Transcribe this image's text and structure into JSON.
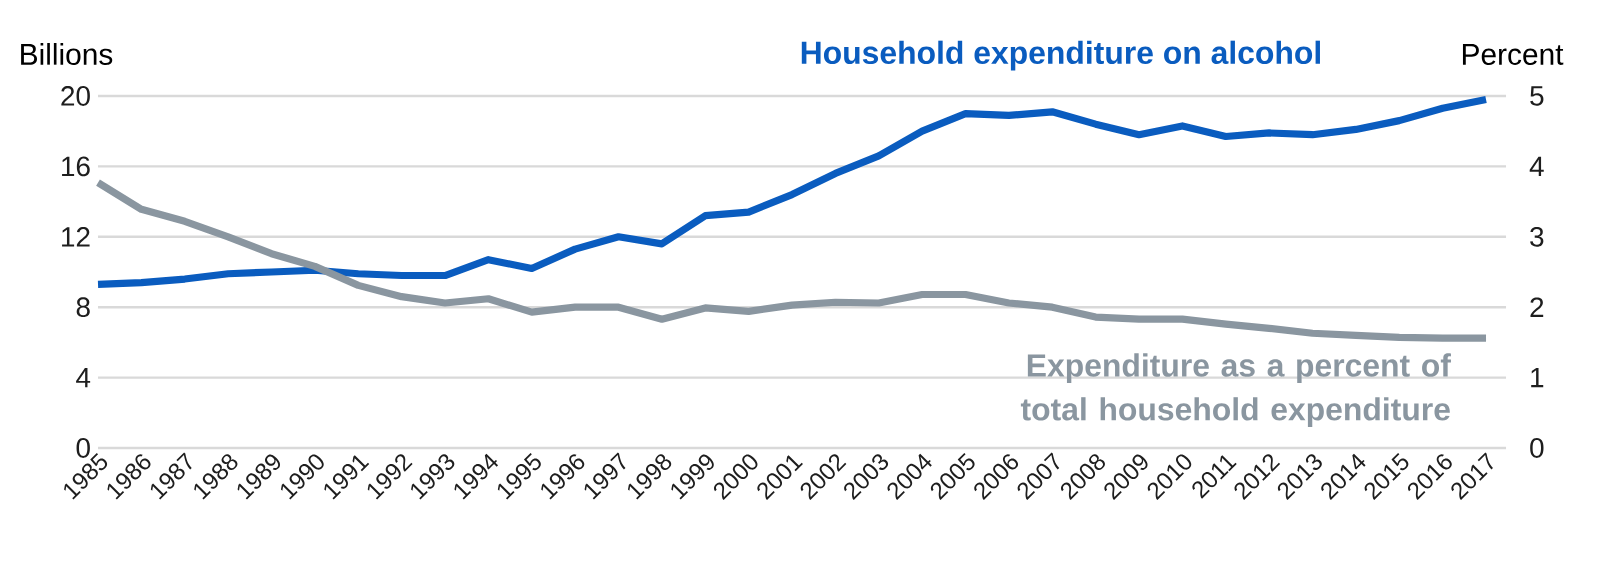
{
  "chart_data": {
    "type": "line",
    "ylabel": "Billions",
    "y2label": "Percent",
    "categories": [
      "1985",
      "1986",
      "1987",
      "1988",
      "1989",
      "1990",
      "1991",
      "1992",
      "1993",
      "1994",
      "1995",
      "1996",
      "1997",
      "1998",
      "1999",
      "2000",
      "2001",
      "2002",
      "2003",
      "2004",
      "2005",
      "2006",
      "2007",
      "2008",
      "2009",
      "2010",
      "2011",
      "2012",
      "2013",
      "2014",
      "2015",
      "2016",
      "2017"
    ],
    "series": [
      {
        "name": "Household expenditure on alcohol",
        "color": "#0a5cbf",
        "values": [
          9.3,
          9.4,
          9.6,
          9.9,
          10.0,
          10.1,
          9.9,
          9.8,
          9.8,
          10.7,
          10.2,
          11.3,
          12.0,
          11.6,
          13.2,
          13.4,
          14.4,
          15.6,
          16.6,
          18.0,
          19.0,
          18.9,
          19.1,
          18.4,
          17.8,
          18.3,
          17.7,
          17.9,
          17.8,
          18.1,
          18.6,
          19.3,
          19.8
        ]
      },
      {
        "name": "Expenditure as a percent of total household expenditure",
        "color": "#8a96a0",
        "axis": "y2",
        "values": [
          3.77,
          3.39,
          3.22,
          3.0,
          2.76,
          2.58,
          2.31,
          2.15,
          2.06,
          2.12,
          1.93,
          2.0,
          2.0,
          1.83,
          1.99,
          1.94,
          2.03,
          2.07,
          2.06,
          2.18,
          2.18,
          2.06,
          2.0,
          1.86,
          1.83,
          1.83,
          1.76,
          1.7,
          1.63,
          1.6,
          1.57,
          1.56,
          1.56
        ]
      }
    ],
    "ylim": [
      0,
      20
    ],
    "yticks": [
      0,
      4,
      8,
      12,
      16,
      20
    ],
    "y2lim": [
      0,
      5
    ],
    "y2ticks": [
      0,
      1,
      2,
      3,
      4,
      5
    ],
    "grid": "y",
    "legend": false,
    "marker": "none",
    "line_style": "solid"
  }
}
